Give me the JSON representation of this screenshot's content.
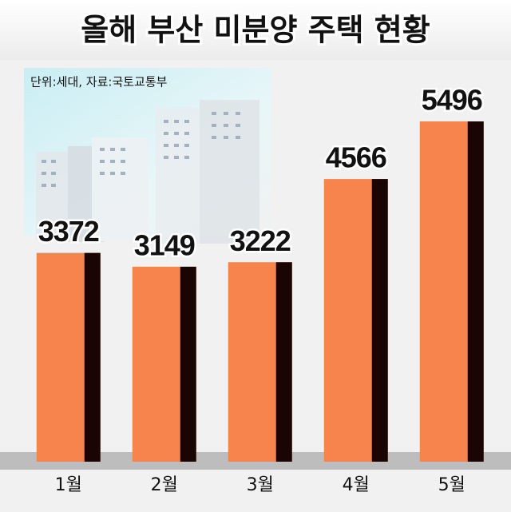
{
  "chart_data": {
    "type": "bar",
    "title": "올해 부산 미분양 주택 현황",
    "subtitle": "단위:세대, 자료:국토교통부",
    "categories": [
      "1월",
      "2월",
      "3월",
      "4월",
      "5월"
    ],
    "values": [
      3372,
      3149,
      3222,
      4566,
      5496
    ],
    "color": "#f7844c"
  }
}
